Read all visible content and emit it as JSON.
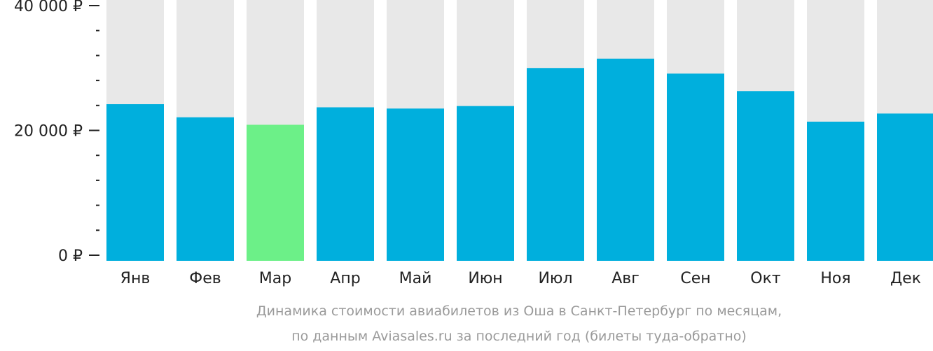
{
  "chart_data": {
    "type": "bar",
    "title": "",
    "xlabel": "",
    "ylabel": "",
    "categories": [
      "Янв",
      "Фев",
      "Мар",
      "Апр",
      "Май",
      "Июн",
      "Июл",
      "Авг",
      "Сен",
      "Окт",
      "Ноя",
      "Дек"
    ],
    "values": [
      24200,
      22100,
      20900,
      23700,
      23500,
      23900,
      30000,
      31500,
      29100,
      26300,
      21400,
      22700
    ],
    "ylim": [
      0,
      40000
    ],
    "yticks": [
      {
        "value": 0,
        "label": "0 ₽"
      },
      {
        "value": 20000,
        "label": "20 000 ₽"
      },
      {
        "value": 40000,
        "label": "40 000 ₽"
      }
    ],
    "minor_tick_step": 4000,
    "highlight_index": 2,
    "grid": false,
    "legend": "none",
    "colors": {
      "bar": "#00afdd",
      "highlight": "#6cf088",
      "background_bar": "#e8e8e8",
      "axis": "#222222",
      "caption": "#9a9a9a"
    }
  },
  "caption": {
    "line1": "Динамика стоимости авиабилетов из Оша в Санкт-Петербург по месяцам,",
    "line2": "по данным Aviasales.ru за последний год (билеты туда-обратно)"
  }
}
